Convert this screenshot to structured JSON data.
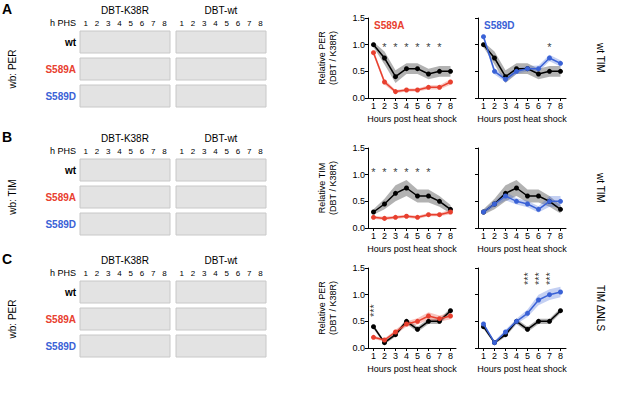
{
  "blots": [
    {
      "letter": "A",
      "blot_label": "wb: PER",
      "header": [
        "DBT-K38R",
        "DBT-wt"
      ],
      "lane_label": "h PHS",
      "lanes": [
        1,
        2,
        3,
        4,
        5,
        6,
        7,
        8
      ],
      "rows": [
        {
          "label": "wt",
          "color": "#000000"
        },
        {
          "label": "S589A",
          "color": "#e8402f"
        },
        {
          "label": "S589D",
          "color": "#3a62d6"
        }
      ]
    },
    {
      "letter": "B",
      "blot_label": "wb: TIM",
      "header": [
        "DBT-K38R",
        "DBT-wt"
      ],
      "lane_label": "h PHS",
      "lanes": [
        1,
        2,
        3,
        4,
        5,
        6,
        7,
        8
      ],
      "rows": [
        {
          "label": "wt",
          "color": "#000000"
        },
        {
          "label": "S589A",
          "color": "#e8402f"
        },
        {
          "label": "S589D",
          "color": "#3a62d6"
        }
      ]
    },
    {
      "letter": "C",
      "blot_label": "wb: PER",
      "header": [
        "DBT-K38R",
        "DBT-wt"
      ],
      "lane_label": "h PHS",
      "lanes": [
        1,
        2,
        3,
        4,
        5,
        6,
        7,
        8
      ],
      "rows": [
        {
          "label": "wt",
          "color": "#000000"
        },
        {
          "label": "S589A",
          "color": "#e8402f"
        },
        {
          "label": "S589D",
          "color": "#3a62d6"
        }
      ]
    }
  ],
  "chart_data": [
    {
      "type": "line",
      "title": "S589A",
      "x_label": "Hours post heat shock",
      "y_label": "Relative PER\n(DBT / K38R)",
      "x": [
        1,
        2,
        3,
        4,
        5,
        6,
        7,
        8
      ],
      "xlim": [
        0.5,
        8.5
      ],
      "xticks": [
        1,
        2,
        3,
        4,
        5,
        6,
        7,
        8
      ],
      "ylim": [
        0,
        1.5
      ],
      "yticks": [
        {
          "value": 0,
          "label": "0.0"
        },
        {
          "value": 0.5,
          "label": "0.5"
        },
        {
          "value": 1,
          "label": "1.0"
        },
        {
          "value": 1.5,
          "label": "1.5"
        }
      ],
      "series": [
        {
          "name": "wt",
          "color": "#000000",
          "values": [
            1.0,
            0.75,
            0.4,
            0.55,
            0.55,
            0.45,
            0.5,
            0.5
          ],
          "errors": [
            0.05,
            0.12,
            0.12,
            0.1,
            0.1,
            0.1,
            0.1,
            0.1
          ]
        },
        {
          "name": "S589A",
          "color": "#e8402f",
          "values": [
            0.85,
            0.3,
            0.12,
            0.15,
            0.15,
            0.2,
            0.2,
            0.3
          ],
          "errors": [
            0.05,
            0.05,
            0.03,
            0.03,
            0.03,
            0.04,
            0.04,
            0.05
          ]
        }
      ],
      "annotations": [
        {
          "x": 2,
          "y": 0.95,
          "text": "*"
        },
        {
          "x": 3,
          "y": 0.95,
          "text": "*"
        },
        {
          "x": 4,
          "y": 0.95,
          "text": "*"
        },
        {
          "x": 5,
          "y": 0.95,
          "text": "*"
        },
        {
          "x": 6,
          "y": 0.95,
          "text": "*"
        },
        {
          "x": 7,
          "y": 0.95,
          "text": "*"
        }
      ]
    },
    {
      "type": "line",
      "title": "S589D",
      "x_label": "Hours post heat shock",
      "side_label": "wt TIM",
      "tick_labels": "x",
      "x": [
        1,
        2,
        3,
        4,
        5,
        6,
        7,
        8
      ],
      "xlim": [
        0.5,
        8.5
      ],
      "xticks": [
        1,
        2,
        3,
        4,
        5,
        6,
        7,
        8
      ],
      "ylim": [
        0,
        1.5
      ],
      "yticks": [
        {
          "value": 0,
          "label": "0.0"
        },
        {
          "value": 0.5,
          "label": "0.5"
        },
        {
          "value": 1,
          "label": "1.0"
        },
        {
          "value": 1.5,
          "label": "1.5"
        }
      ],
      "series": [
        {
          "name": "wt",
          "color": "#000000",
          "values": [
            1.0,
            0.75,
            0.4,
            0.55,
            0.55,
            0.45,
            0.5,
            0.5
          ],
          "errors": [
            0.05,
            0.12,
            0.12,
            0.1,
            0.1,
            0.1,
            0.1,
            0.1
          ]
        },
        {
          "name": "S589D",
          "color": "#3a62d6",
          "values": [
            1.15,
            0.5,
            0.35,
            0.5,
            0.55,
            0.55,
            0.75,
            0.65
          ],
          "errors": [
            0.05,
            0.06,
            0.05,
            0.05,
            0.05,
            0.06,
            0.06,
            0.06
          ]
        }
      ],
      "annotations": [
        {
          "x": 7,
          "y": 0.95,
          "text": "*"
        }
      ]
    },
    {
      "type": "line",
      "x_label": "Hours post heat shock",
      "y_label": "Relative TIM\n(DBT / K38R)",
      "x": [
        1,
        2,
        3,
        4,
        5,
        6,
        7,
        8
      ],
      "xlim": [
        0.5,
        8.5
      ],
      "xticks": [
        1,
        2,
        3,
        4,
        5,
        6,
        7,
        8
      ],
      "ylim": [
        0,
        1.5
      ],
      "yticks": [
        {
          "value": 0,
          "label": "0.0"
        },
        {
          "value": 0.5,
          "label": "0.5"
        },
        {
          "value": 1,
          "label": "1.0"
        },
        {
          "value": 1.5,
          "label": "1.5"
        }
      ],
      "series": [
        {
          "name": "wt",
          "color": "#000000",
          "values": [
            0.3,
            0.45,
            0.65,
            0.75,
            0.6,
            0.6,
            0.5,
            0.35
          ],
          "errors": [
            0.05,
            0.1,
            0.15,
            0.15,
            0.12,
            0.12,
            0.1,
            0.08
          ]
        },
        {
          "name": "S589A",
          "color": "#e8402f",
          "values": [
            0.2,
            0.18,
            0.2,
            0.22,
            0.2,
            0.25,
            0.25,
            0.3
          ],
          "errors": [
            0.03,
            0.03,
            0.03,
            0.03,
            0.03,
            0.03,
            0.03,
            0.04
          ]
        }
      ],
      "annotations": [
        {
          "x": 1,
          "y": 1.05,
          "text": "*"
        },
        {
          "x": 2,
          "y": 1.05,
          "text": "*"
        },
        {
          "x": 3,
          "y": 1.05,
          "text": "*"
        },
        {
          "x": 4,
          "y": 1.05,
          "text": "*"
        },
        {
          "x": 5,
          "y": 1.05,
          "text": "*"
        },
        {
          "x": 6,
          "y": 1.05,
          "text": "*"
        }
      ]
    },
    {
      "type": "line",
      "x_label": "Hours post heat shock",
      "side_label": "wt TIM",
      "tick_labels": "x",
      "x": [
        1,
        2,
        3,
        4,
        5,
        6,
        7,
        8
      ],
      "xlim": [
        0.5,
        8.5
      ],
      "xticks": [
        1,
        2,
        3,
        4,
        5,
        6,
        7,
        8
      ],
      "ylim": [
        0,
        1.5
      ],
      "yticks": [
        {
          "value": 0,
          "label": "0.0"
        },
        {
          "value": 0.5,
          "label": "0.5"
        },
        {
          "value": 1,
          "label": "1.0"
        },
        {
          "value": 1.5,
          "label": "1.5"
        }
      ],
      "series": [
        {
          "name": "wt",
          "color": "#000000",
          "values": [
            0.3,
            0.45,
            0.65,
            0.75,
            0.6,
            0.6,
            0.5,
            0.35
          ],
          "errors": [
            0.05,
            0.1,
            0.15,
            0.15,
            0.12,
            0.12,
            0.1,
            0.08
          ]
        },
        {
          "name": "S589D",
          "color": "#3a62d6",
          "values": [
            0.3,
            0.45,
            0.6,
            0.5,
            0.45,
            0.35,
            0.5,
            0.5
          ],
          "errors": [
            0.04,
            0.05,
            0.08,
            0.06,
            0.06,
            0.06,
            0.1,
            0.1
          ]
        }
      ],
      "annotations": []
    },
    {
      "type": "line",
      "x_label": "Hours post heat shock",
      "y_label": "Relative PER\n(DBT / K38R)",
      "x": [
        1,
        2,
        3,
        4,
        5,
        6,
        7,
        8
      ],
      "xlim": [
        0.5,
        8.5
      ],
      "xticks": [
        1,
        2,
        3,
        4,
        5,
        6,
        7,
        8
      ],
      "ylim": [
        0,
        1.5
      ],
      "yticks": [
        {
          "value": 0,
          "label": "0.0"
        },
        {
          "value": 0.5,
          "label": "0.5"
        },
        {
          "value": 1,
          "label": "1.0"
        },
        {
          "value": 1.5,
          "label": "1.5"
        }
      ],
      "series": [
        {
          "name": "wt",
          "color": "#000000",
          "values": [
            0.4,
            0.1,
            0.25,
            0.5,
            0.35,
            0.5,
            0.5,
            0.7
          ],
          "errors": [
            0.04,
            0.03,
            0.04,
            0.05,
            0.05,
            0.05,
            0.05,
            0.05
          ]
        },
        {
          "name": "S589A",
          "color": "#e8402f",
          "values": [
            0.2,
            0.15,
            0.3,
            0.45,
            0.5,
            0.6,
            0.55,
            0.6
          ],
          "errors": [
            0.03,
            0.03,
            0.04,
            0.05,
            0.06,
            0.07,
            0.06,
            0.06
          ]
        }
      ],
      "annotations": [
        {
          "x": 1,
          "y": 0.7,
          "text": "***"
        }
      ]
    },
    {
      "type": "line",
      "x_label": "Hours post heat shock",
      "side_label": "TIM ΔNLS",
      "tick_labels": "x",
      "x": [
        1,
        2,
        3,
        4,
        5,
        6,
        7,
        8
      ],
      "xlim": [
        0.5,
        8.5
      ],
      "xticks": [
        1,
        2,
        3,
        4,
        5,
        6,
        7,
        8
      ],
      "ylim": [
        0,
        1.5
      ],
      "yticks": [
        {
          "value": 0,
          "label": "0.0"
        },
        {
          "value": 0.5,
          "label": "0.5"
        },
        {
          "value": 1,
          "label": "1.0"
        },
        {
          "value": 1.5,
          "label": "1.5"
        }
      ],
      "series": [
        {
          "name": "wt",
          "color": "#000000",
          "values": [
            0.4,
            0.1,
            0.25,
            0.5,
            0.35,
            0.5,
            0.5,
            0.7
          ],
          "errors": [
            0.04,
            0.03,
            0.04,
            0.05,
            0.05,
            0.05,
            0.05,
            0.05
          ]
        },
        {
          "name": "S589D",
          "color": "#3a62d6",
          "values": [
            0.45,
            0.1,
            0.3,
            0.5,
            0.65,
            0.9,
            1.0,
            1.05
          ],
          "errors": [
            0.03,
            0.03,
            0.04,
            0.05,
            0.07,
            0.1,
            0.1,
            0.1
          ]
        }
      ],
      "annotations": [
        {
          "x": 5,
          "y": 1.3,
          "text": "***"
        },
        {
          "x": 6,
          "y": 1.3,
          "text": "***"
        },
        {
          "x": 7,
          "y": 1.3,
          "text": "***"
        }
      ]
    }
  ]
}
